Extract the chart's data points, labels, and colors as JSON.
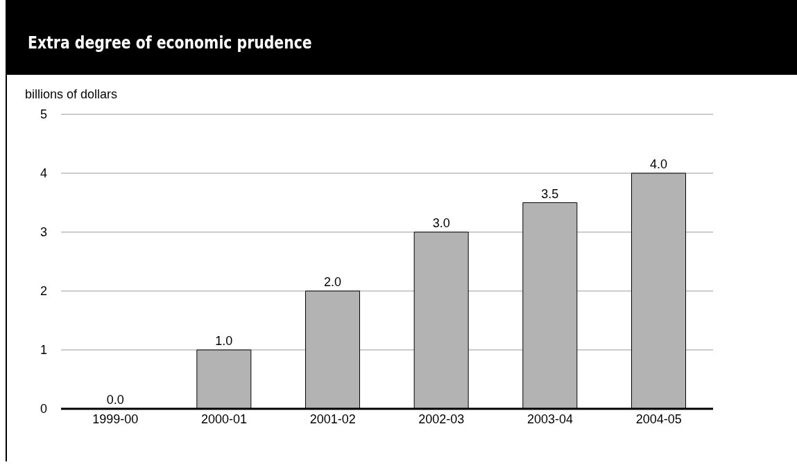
{
  "chart_data": {
    "type": "bar",
    "title": "Extra degree of economic prudence",
    "ylabel": "billions of dollars",
    "categories": [
      "1999-00",
      "2000-01",
      "2001-02",
      "2002-03",
      "2003-04",
      "2004-05"
    ],
    "values": [
      0,
      1,
      2,
      3,
      3.5,
      4
    ],
    "value_labels": [
      "0.0",
      "1.0",
      "2.0",
      "3.0",
      "3.5",
      "4.0"
    ],
    "color": "#b3b3b3",
    "ylim": [
      0,
      5
    ],
    "yticks": [
      0,
      1,
      2,
      3,
      4,
      5
    ],
    "grid": "y"
  }
}
